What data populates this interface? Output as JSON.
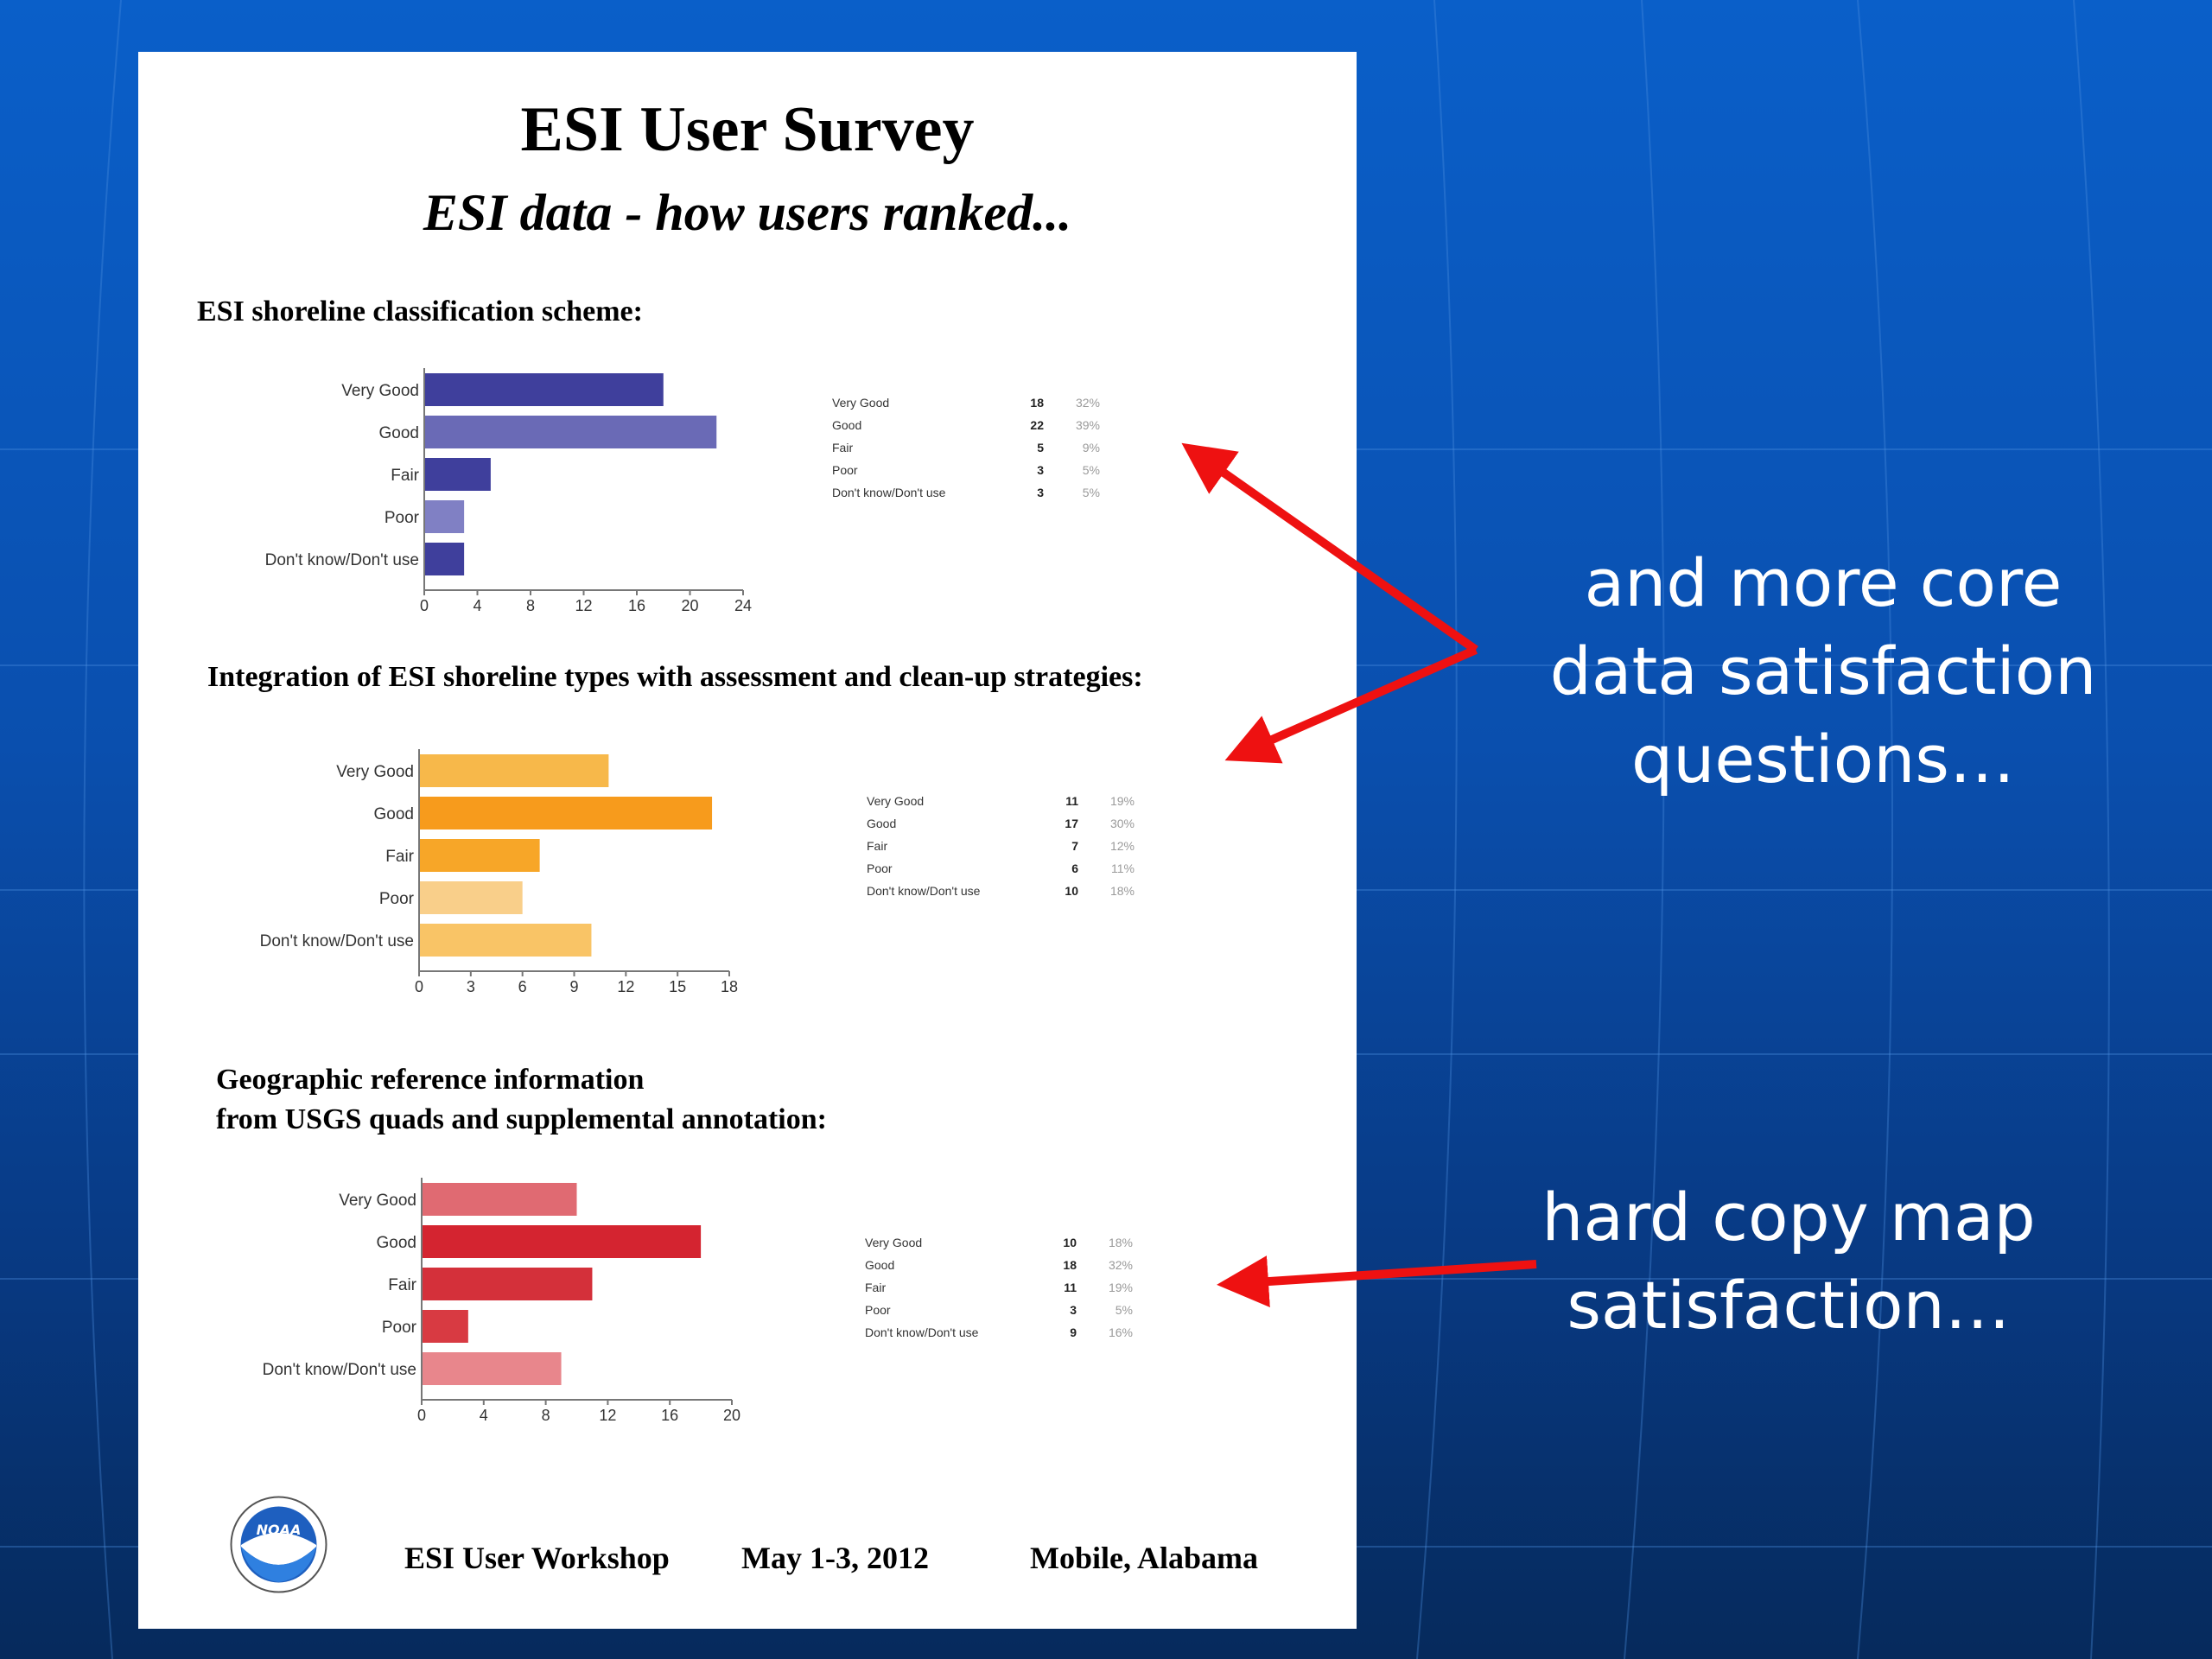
{
  "page": {
    "title": "ESI User Survey",
    "subtitle": "ESI data - how users ranked...",
    "footer": {
      "workshop": "ESI User Workshop",
      "date": "May 1-3, 2012",
      "location": "Mobile, Alabama",
      "logo_text": "NOAA"
    }
  },
  "annotations": {
    "core_data_lines": [
      "and more core",
      "data satisfaction",
      "questions…"
    ],
    "hard_copy_lines": [
      "hard copy map",
      "satisfaction…"
    ]
  },
  "colors": {
    "arrow": "#ee1111",
    "annotation_text": "#ffffff"
  },
  "chart_data": [
    {
      "type": "bar",
      "orientation": "horizontal",
      "title": "ESI shoreline classification scheme:",
      "categories": [
        "Very Good",
        "Good",
        "Fair",
        "Poor",
        "Don't know/Don't use"
      ],
      "values": [
        18,
        22,
        5,
        3,
        3
      ],
      "percents": [
        "32%",
        "39%",
        "9%",
        "5%",
        "5%"
      ],
      "xlim": [
        0,
        24
      ],
      "ticks": [
        0,
        4,
        8,
        12,
        16,
        20,
        24
      ],
      "colors": [
        "#3f3f9c",
        "#6a6ab6",
        "#3f3f9c",
        "#8080c4",
        "#3f3f9c"
      ],
      "summary_labels": [
        "Very Good",
        "Good",
        "Fair",
        "Poor",
        "Don't know/Don't use"
      ]
    },
    {
      "type": "bar",
      "orientation": "horizontal",
      "title": "Integration of ESI shoreline types with assessment and clean-up strategies:",
      "categories": [
        "Very Good",
        "Good",
        "Fair",
        "Poor",
        "Don't know/Don't use"
      ],
      "values": [
        11,
        17,
        7,
        6,
        10
      ],
      "percents": [
        "19%",
        "30%",
        "12%",
        "11%",
        "18%"
      ],
      "xlim": [
        0,
        18
      ],
      "ticks": [
        0,
        3,
        6,
        9,
        12,
        15,
        18
      ],
      "colors": [
        "#f7b84a",
        "#f79b1c",
        "#f7a628",
        "#f9cf8a",
        "#f9c466"
      ],
      "summary_labels": [
        "Very Good",
        "Good",
        "Fair",
        "Poor",
        "Don't know/Don't use"
      ]
    },
    {
      "type": "bar",
      "orientation": "horizontal",
      "title": "Geographic reference information\nfrom USGS quads and supplemental annotation:",
      "categories": [
        "Very Good",
        "Good",
        "Fair",
        "Poor",
        "Don't know/Don't use"
      ],
      "values": [
        10,
        18,
        11,
        3,
        9
      ],
      "percents": [
        "18%",
        "32%",
        "19%",
        "5%",
        "16%"
      ],
      "xlim": [
        0,
        20
      ],
      "ticks": [
        0,
        4,
        8,
        12,
        16,
        20
      ],
      "colors": [
        "#e06a72",
        "#d42430",
        "#d4303a",
        "#d83a42",
        "#e8868c"
      ],
      "summary_labels": [
        "Very Good",
        "Good",
        "Fair",
        "Poor",
        "Don't know/Don't use"
      ]
    }
  ]
}
